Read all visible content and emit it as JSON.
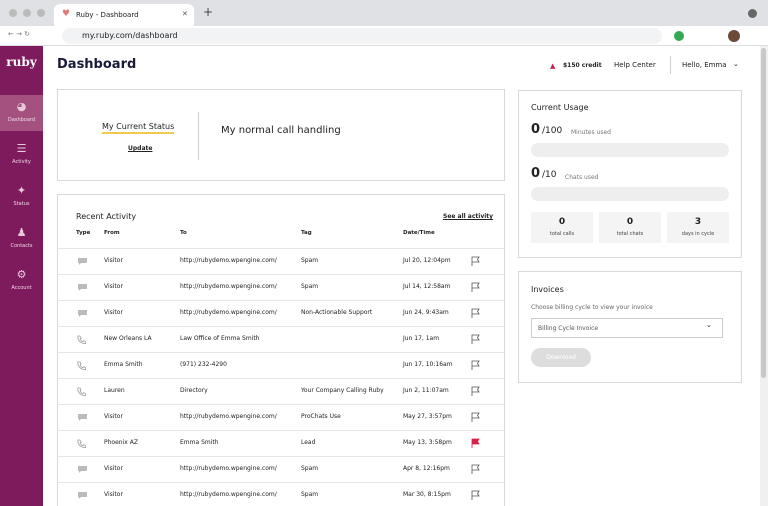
{
  "browser": {
    "tab_title": "Ruby - Dashboard",
    "url": "my.ruby.com/dashboard"
  },
  "sidebar": {
    "logo": "ruby",
    "items": [
      "Dashboard",
      "Activity",
      "Status",
      "Contacts",
      "Account"
    ],
    "active": 0
  },
  "header": {
    "title": "Dashboard",
    "credit": "$150 credit",
    "help": "Help Center",
    "user": "Hello, Emma"
  },
  "status": {
    "label": "My Current Status",
    "update": "Update",
    "value": "My normal call handling"
  },
  "activity": {
    "title": "Recent Activity",
    "see_all": "See all activity",
    "columns": [
      "Type",
      "From",
      "To",
      "Tag",
      "Date/Time"
    ],
    "rows": [
      {
        "icon": "chat",
        "from": "Visitor",
        "to": "http://rubydemo.wpengine.com/",
        "tag": "Spam",
        "date": "Jul 20, 12:04pm",
        "flagged": false
      },
      {
        "icon": "chat",
        "from": "Visitor",
        "to": "http://rubydemo.wpengine.com/",
        "tag": "Spam",
        "date": "Jul 14, 12:58am",
        "flagged": false
      },
      {
        "icon": "chat",
        "from": "Visitor",
        "to": "http://rubydemo.wpengine.com/",
        "tag": "Non-Actionable Support",
        "date": "Jun 24, 9:43am",
        "flagged": false
      },
      {
        "icon": "phone",
        "from": "New Orleans LA",
        "to": "Law Office of Emma Smith",
        "tag": null,
        "date": "Jun 17, 1am",
        "flagged": false
      },
      {
        "icon": "phone",
        "from": "Emma Smith",
        "to": "(971) 232-4290",
        "tag": null,
        "date": "Jun 17, 10:16am",
        "flagged": false
      },
      {
        "icon": "phone",
        "from": "Lauren",
        "to": "Directory",
        "tag": "Your Company Calling Ruby",
        "date": "Jun 2, 11:07am",
        "flagged": false
      },
      {
        "icon": "chat",
        "from": "Visitor",
        "to": "http://rubydemo.wpengine.com/",
        "tag": "ProChats Use",
        "date": "May 27, 3:57pm",
        "flagged": false
      },
      {
        "icon": "phone",
        "from": "Phoenix AZ",
        "to": "Emma Smith",
        "tag": "Lead",
        "date": "May 13, 3:58pm",
        "flagged": true
      },
      {
        "icon": "chat",
        "from": "Visitor",
        "to": "http://rubydemo.wpengine.com/",
        "tag": "Spam",
        "date": "Apr 8, 12:16pm",
        "flagged": false
      },
      {
        "icon": "chat",
        "from": "Visitor",
        "to": "http://rubydemo.wpengine.com/",
        "tag": "Spam",
        "date": "Mar 30, 8:15pm",
        "flagged": false
      }
    ]
  },
  "usage": {
    "title": "Current Usage",
    "minutes": {
      "used": 0,
      "total": "/100",
      "label": "Minutes used"
    },
    "chats": {
      "used": 0,
      "total": "/10",
      "label": "Chats used"
    },
    "stats": [
      {
        "value": 0,
        "label": "total calls"
      },
      {
        "value": 0,
        "label": "total chats"
      },
      {
        "value": 3,
        "label": "days in cycle"
      }
    ]
  },
  "invoices": {
    "title": "Invoices",
    "hint": "Choose billing cycle to view your invoice",
    "select": "Billing Cycle Invoice",
    "button": "Download"
  }
}
